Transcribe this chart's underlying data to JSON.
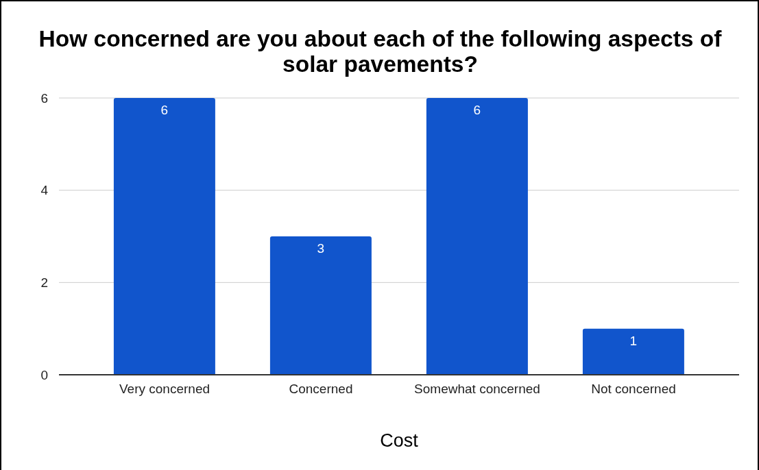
{
  "chart_data": {
    "type": "bar",
    "title": "How concerned are you about each of the following aspects of solar pavements?",
    "xlabel": "Cost",
    "categories": [
      "Very concerned",
      "Concerned",
      "Somewhat concerned",
      "Not concerned"
    ],
    "values": [
      6,
      3,
      6,
      1
    ],
    "color": "#1155cc",
    "ylim": [
      0,
      6
    ],
    "yticks": [
      0,
      2,
      4,
      6
    ],
    "grid": "y",
    "data_labels": true
  }
}
